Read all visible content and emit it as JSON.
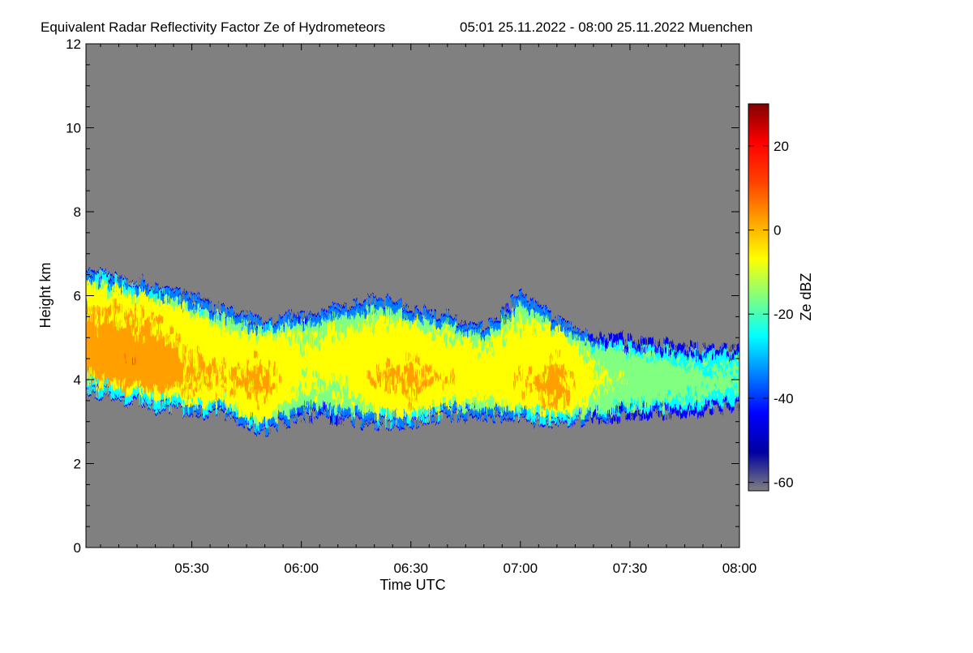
{
  "chart_data": {
    "type": "heatmap",
    "title": "Equivalent Radar Reflectivity Factor Ze of Hydrometeors",
    "subtitle": "05:01 25.11.2022 - 08:00 25.11.2022 Muenchen",
    "xlabel": "Time UTC",
    "ylabel": "Height km",
    "x_range_minutes": [
      301,
      480
    ],
    "x_ticks": [
      {
        "value": 330,
        "label": "05:30"
      },
      {
        "value": 360,
        "label": "06:00"
      },
      {
        "value": 390,
        "label": "06:30"
      },
      {
        "value": 420,
        "label": "07:00"
      },
      {
        "value": 450,
        "label": "07:30"
      },
      {
        "value": 480,
        "label": "08:00"
      }
    ],
    "ylim": [
      0,
      12
    ],
    "y_ticks": [
      0,
      2,
      4,
      6,
      8,
      10,
      12
    ],
    "colorbar": {
      "label": "Ze dBZ",
      "range": [
        -62,
        30
      ],
      "ticks": [
        -60,
        -40,
        -20,
        0,
        20
      ],
      "colors": [
        "#808080",
        "#0000a0",
        "#0000ff",
        "#0080ff",
        "#00ffff",
        "#80ff80",
        "#ffff00",
        "#ffa000",
        "#ff4000",
        "#ff0000",
        "#800000"
      ]
    },
    "background_color": "#808080",
    "cloud_layer": {
      "description_points": [
        {
          "t": 301,
          "top": 6.6,
          "base": 3.8,
          "core": 4.6,
          "core_dbz": 4
        },
        {
          "t": 310,
          "top": 6.4,
          "base": 3.6,
          "core": 4.5,
          "core_dbz": 5
        },
        {
          "t": 320,
          "top": 6.2,
          "base": 3.4,
          "core": 4.4,
          "core_dbz": 4
        },
        {
          "t": 330,
          "top": 5.9,
          "base": 3.3,
          "core": 4.2,
          "core_dbz": 0
        },
        {
          "t": 340,
          "top": 5.6,
          "base": 3.2,
          "core": 4.1,
          "core_dbz": -2
        },
        {
          "t": 350,
          "top": 5.3,
          "base": 2.8,
          "core": 3.9,
          "core_dbz": 0
        },
        {
          "t": 360,
          "top": 5.5,
          "base": 3.2,
          "core": 4.4,
          "core_dbz": -8
        },
        {
          "t": 370,
          "top": 5.7,
          "base": 3.1,
          "core": 4.6,
          "core_dbz": -6
        },
        {
          "t": 380,
          "top": 5.9,
          "base": 3.0,
          "core": 4.1,
          "core_dbz": -2
        },
        {
          "t": 390,
          "top": 5.7,
          "base": 3.0,
          "core": 4.0,
          "core_dbz": 0
        },
        {
          "t": 400,
          "top": 5.5,
          "base": 3.2,
          "core": 4.1,
          "core_dbz": -4
        },
        {
          "t": 410,
          "top": 5.2,
          "base": 3.2,
          "core": 4.2,
          "core_dbz": -6
        },
        {
          "t": 420,
          "top": 6.0,
          "base": 3.1,
          "core": 4.0,
          "core_dbz": -2
        },
        {
          "t": 430,
          "top": 5.4,
          "base": 3.0,
          "core": 3.8,
          "core_dbz": 2
        },
        {
          "t": 440,
          "top": 5.0,
          "base": 3.1,
          "core": 4.0,
          "core_dbz": -10
        },
        {
          "t": 450,
          "top": 4.9,
          "base": 3.2,
          "core": 4.0,
          "core_dbz": -14
        },
        {
          "t": 460,
          "top": 4.8,
          "base": 3.2,
          "core": 4.0,
          "core_dbz": -16
        },
        {
          "t": 470,
          "top": 4.7,
          "base": 3.3,
          "core": 4.0,
          "core_dbz": -18
        },
        {
          "t": 480,
          "top": 4.7,
          "base": 3.4,
          "core": 4.0,
          "core_dbz": -18
        }
      ]
    }
  }
}
